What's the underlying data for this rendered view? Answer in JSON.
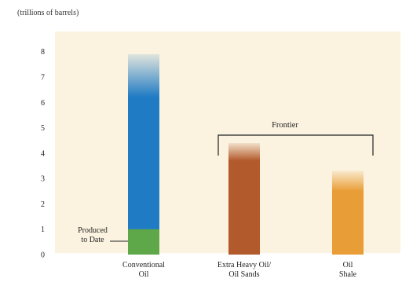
{
  "chart_data": {
    "type": "bar",
    "unit_label": "(trillions of barrels)",
    "categories": [
      "Conventional\nOil",
      "Extra Heavy Oil/\nOil Sands",
      "Oil\nShale"
    ],
    "values": [
      7.9,
      4.4,
      3.3
    ],
    "solid_values": [
      6.2,
      3.7,
      2.5
    ],
    "produced_to_date": {
      "category": "Conventional\nOil",
      "value": 1.0,
      "label": "Produced\nto Date"
    },
    "bracket": {
      "label": "Frontier",
      "spans": [
        "Extra Heavy Oil/\nOil Sands",
        "Oil\nShale"
      ]
    },
    "ylim": [
      0,
      8.3
    ],
    "yticks": [
      0,
      1,
      2,
      3,
      4,
      5,
      6,
      7,
      8
    ],
    "grid": false,
    "colors": {
      "plot_background": "#fbf3e0",
      "conventional": "#1f7bc4",
      "produced": "#5fa84a",
      "oil_sands": "#b25a2c",
      "oil_shale": "#e99d36",
      "axis": "#222222"
    }
  }
}
